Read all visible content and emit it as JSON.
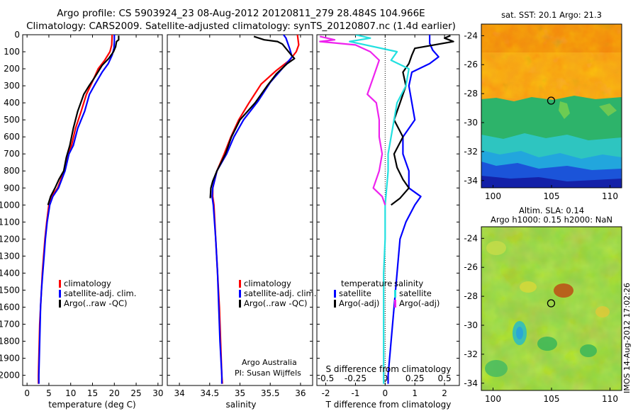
{
  "titles": {
    "line1": "Argo profile: CS 5903924_23 08-Aug-2012 20120811_279 28.484S 104.966E",
    "line2": "Climatology: CARS2009. Satellite-adjusted climatology: synTS_20120807.nc (1.4d earlier)"
  },
  "stamp": "IMOS 14-Aug-2012 17:02:26",
  "colors": {
    "climatology": "#ff0000",
    "satellite": "#0000ff",
    "argo": "#000000",
    "sat_salinity": "#22e0e0",
    "argo_salinity": "#ee22ee"
  },
  "chart_data": [
    {
      "type": "line",
      "name": "temperature profile",
      "xlabel": "temperature (deg C)",
      "xlim": [
        -1,
        31
      ],
      "ylim": [
        2060,
        0
      ],
      "y_reversed": true,
      "xticks": [
        0,
        5,
        10,
        15,
        20,
        25,
        30
      ],
      "yticks": [
        0,
        100,
        200,
        300,
        400,
        500,
        600,
        700,
        800,
        900,
        1000,
        1100,
        1200,
        1300,
        1400,
        1500,
        1600,
        1700,
        1800,
        1900,
        2000
      ],
      "legend": [
        "climatology",
        "satellite-adj. clim.",
        "Argo(..raw -QC)"
      ],
      "series": [
        {
          "name": "climatology",
          "color": "#ff0000",
          "points": [
            [
              19.5,
              0
            ],
            [
              19.4,
              60
            ],
            [
              19.0,
              100
            ],
            [
              17.8,
              150
            ],
            [
              16.3,
              200
            ],
            [
              14.9,
              280
            ],
            [
              13.6,
              350
            ],
            [
              12.4,
              450
            ],
            [
              11.1,
              550
            ],
            [
              10.2,
              650
            ],
            [
              9.4,
              700
            ],
            [
              8.5,
              800
            ],
            [
              7.0,
              900
            ],
            [
              5.6,
              950
            ],
            [
              5.0,
              1000
            ],
            [
              4.5,
              1100
            ],
            [
              4.1,
              1200
            ],
            [
              3.8,
              1300
            ],
            [
              3.5,
              1400
            ],
            [
              3.3,
              1500
            ],
            [
              3.1,
              1600
            ],
            [
              2.9,
              1700
            ],
            [
              2.8,
              1800
            ],
            [
              2.7,
              1900
            ],
            [
              2.6,
              2000
            ],
            [
              2.6,
              2050
            ]
          ]
        },
        {
          "name": "satellite-adj. clim.",
          "color": "#0000ff",
          "points": [
            [
              20.0,
              0
            ],
            [
              20.0,
              40
            ],
            [
              19.9,
              80
            ],
            [
              19.5,
              120
            ],
            [
              18.6,
              170
            ],
            [
              17.2,
              220
            ],
            [
              15.6,
              290
            ],
            [
              14.3,
              350
            ],
            [
              13.2,
              450
            ],
            [
              11.6,
              550
            ],
            [
              10.6,
              650
            ],
            [
              9.6,
              700
            ],
            [
              8.7,
              800
            ],
            [
              7.2,
              900
            ],
            [
              5.9,
              950
            ],
            [
              5.2,
              1000
            ],
            [
              4.6,
              1100
            ],
            [
              4.2,
              1200
            ],
            [
              3.9,
              1300
            ],
            [
              3.6,
              1400
            ],
            [
              3.3,
              1500
            ],
            [
              3.1,
              1600
            ],
            [
              3.0,
              1700
            ],
            [
              2.9,
              1800
            ],
            [
              2.8,
              1900
            ],
            [
              2.7,
              2000
            ],
            [
              2.7,
              2050
            ]
          ]
        },
        {
          "name": "Argo(..raw -QC)",
          "color": "#000000",
          "points": [
            [
              21.0,
              5
            ],
            [
              21.0,
              30
            ],
            [
              20.5,
              40
            ],
            [
              20.3,
              70
            ],
            [
              19.8,
              100
            ],
            [
              18.7,
              140
            ],
            [
              17.2,
              180
            ],
            [
              15.5,
              250
            ],
            [
              14.2,
              300
            ],
            [
              13.0,
              350
            ],
            [
              11.6,
              450
            ],
            [
              10.6,
              550
            ],
            [
              9.8,
              650
            ],
            [
              9.0,
              720
            ],
            [
              8.4,
              800
            ],
            [
              7.3,
              850
            ],
            [
              6.4,
              900
            ],
            [
              5.4,
              950
            ],
            [
              4.8,
              1000
            ]
          ]
        }
      ]
    },
    {
      "type": "line",
      "name": "salinity profile",
      "xlabel": "salinity",
      "xlim": [
        33.8,
        36.2
      ],
      "ylim": [
        2060,
        0
      ],
      "y_reversed": true,
      "xticks": [
        34,
        34.5,
        35,
        35.5,
        36
      ],
      "xticklabels": [
        "34",
        "34.5",
        "35",
        "35.5",
        "36"
      ],
      "legend": [
        "climatology",
        "satellite-adj. clim.",
        "Argo(..raw -QC)"
      ],
      "annotation": [
        "Argo Australia",
        "PI: Susan Wijffels"
      ],
      "series": [
        {
          "name": "climatology",
          "color": "#ff0000",
          "points": [
            [
              35.95,
              0
            ],
            [
              35.97,
              60
            ],
            [
              35.93,
              100
            ],
            [
              35.82,
              150
            ],
            [
              35.6,
              210
            ],
            [
              35.35,
              290
            ],
            [
              35.15,
              400
            ],
            [
              34.98,
              500
            ],
            [
              34.85,
              600
            ],
            [
              34.74,
              700
            ],
            [
              34.62,
              800
            ],
            [
              34.55,
              900
            ],
            [
              34.55,
              950
            ],
            [
              34.57,
              1000
            ],
            [
              34.6,
              1200
            ],
            [
              34.63,
              1400
            ],
            [
              34.66,
              1600
            ],
            [
              34.68,
              1800
            ],
            [
              34.7,
              2000
            ],
            [
              34.71,
              2050
            ]
          ]
        },
        {
          "name": "satellite-adj. clim.",
          "color": "#0000ff",
          "points": [
            [
              35.72,
              0
            ],
            [
              35.76,
              20
            ],
            [
              35.82,
              80
            ],
            [
              35.86,
              130
            ],
            [
              35.72,
              190
            ],
            [
              35.5,
              280
            ],
            [
              35.3,
              390
            ],
            [
              35.06,
              500
            ],
            [
              34.9,
              600
            ],
            [
              34.78,
              700
            ],
            [
              34.62,
              800
            ],
            [
              34.55,
              900
            ],
            [
              34.54,
              950
            ],
            [
              34.56,
              1000
            ],
            [
              34.6,
              1200
            ],
            [
              34.63,
              1400
            ],
            [
              34.65,
              1600
            ],
            [
              34.67,
              1800
            ],
            [
              34.7,
              2000
            ],
            [
              34.7,
              2050
            ]
          ]
        },
        {
          "name": "Argo(..raw -QC)",
          "color": "#000000",
          "points": [
            [
              35.23,
              10
            ],
            [
              35.4,
              30
            ],
            [
              35.62,
              40
            ],
            [
              35.7,
              55
            ],
            [
              35.85,
              120
            ],
            [
              35.9,
              140
            ],
            [
              35.78,
              170
            ],
            [
              35.6,
              230
            ],
            [
              35.45,
              300
            ],
            [
              35.25,
              400
            ],
            [
              35.0,
              500
            ],
            [
              34.86,
              600
            ],
            [
              34.76,
              700
            ],
            [
              34.62,
              800
            ],
            [
              34.55,
              860
            ],
            [
              34.52,
              900
            ],
            [
              34.51,
              960
            ]
          ]
        }
      ]
    },
    {
      "type": "line",
      "name": "difference from climatology",
      "xlabel": "T difference from climatology",
      "xlabel_top": "S difference from climatology",
      "xlim": [
        -2.3,
        2.5
      ],
      "ylim": [
        2060,
        0
      ],
      "y_reversed": true,
      "xticks": [
        -2,
        -1,
        0,
        1,
        2
      ],
      "top_ticks": [
        -0.5,
        -0.25,
        0,
        0.25,
        0.5
      ],
      "top_ticklabels": [
        "-0.5",
        "-0.25",
        "0",
        "0.25",
        "0.5"
      ],
      "legend_groups": [
        {
          "title": "temperature",
          "items": [
            "satellite",
            "Argo(-adj)"
          ]
        },
        {
          "title": "salinity",
          "items": [
            "satellite",
            "Argo(-adj)"
          ]
        }
      ],
      "series": [
        {
          "name": "temperature satellite",
          "color": "#0000ff",
          "points": [
            [
              1.5,
              0
            ],
            [
              1.5,
              50
            ],
            [
              1.6,
              90
            ],
            [
              1.8,
              130
            ],
            [
              1.5,
              170
            ],
            [
              0.9,
              220
            ],
            [
              0.8,
              300
            ],
            [
              0.9,
              400
            ],
            [
              1.0,
              500
            ],
            [
              0.6,
              600
            ],
            [
              0.6,
              700
            ],
            [
              0.8,
              800
            ],
            [
              0.8,
              900
            ],
            [
              1.2,
              950
            ],
            [
              1.0,
              1000
            ],
            [
              0.7,
              1100
            ],
            [
              0.5,
              1200
            ],
            [
              0.4,
              1400
            ],
            [
              0.3,
              1600
            ],
            [
              0.2,
              1800
            ],
            [
              0.1,
              2000
            ],
            [
              0.1,
              2050
            ]
          ]
        },
        {
          "name": "temperature Argo(-adj)",
          "color": "#000000",
          "points": [
            [
              2.2,
              5
            ],
            [
              2.0,
              20
            ],
            [
              2.3,
              40
            ],
            [
              1.0,
              80
            ],
            [
              0.9,
              120
            ],
            [
              0.8,
              170
            ],
            [
              0.6,
              220
            ],
            [
              0.7,
              300
            ],
            [
              0.5,
              400
            ],
            [
              0.3,
              500
            ],
            [
              0.6,
              600
            ],
            [
              0.3,
              700
            ],
            [
              0.4,
              780
            ],
            [
              0.6,
              850
            ],
            [
              0.8,
              900
            ],
            [
              0.5,
              960
            ],
            [
              0.2,
              1000
            ]
          ]
        },
        {
          "name": "salinity satellite",
          "color": "#22e0e0",
          "points": [
            [
              -1.0,
              0
            ],
            [
              -0.5,
              20
            ],
            [
              -1.2,
              40
            ],
            [
              0.4,
              100
            ],
            [
              0.2,
              150
            ],
            [
              0.8,
              200
            ],
            [
              0.7,
              300
            ],
            [
              0.4,
              400
            ],
            [
              0.3,
              500
            ],
            [
              0.2,
              600
            ],
            [
              0.1,
              700
            ],
            [
              0.1,
              800
            ],
            [
              0.05,
              900
            ],
            [
              0.0,
              1000
            ],
            [
              0.0,
              1200
            ],
            [
              -0.05,
              1400
            ],
            [
              -0.05,
              1600
            ],
            [
              -0.05,
              1800
            ],
            [
              -0.05,
              2000
            ],
            [
              -0.05,
              2050
            ]
          ]
        },
        {
          "name": "salinity Argo(-adj)",
          "color": "#ee22ee",
          "points": [
            [
              -2.2,
              10
            ],
            [
              -1.7,
              30
            ],
            [
              -2.2,
              40
            ],
            [
              -1.0,
              60
            ],
            [
              -0.5,
              100
            ],
            [
              -0.2,
              150
            ],
            [
              -0.4,
              250
            ],
            [
              -0.6,
              350
            ],
            [
              -0.3,
              400
            ],
            [
              -0.2,
              500
            ],
            [
              -0.2,
              600
            ],
            [
              -0.1,
              700
            ],
            [
              -0.2,
              800
            ],
            [
              -0.4,
              900
            ],
            [
              -0.1,
              950
            ],
            [
              0.0,
              1000
            ]
          ]
        }
      ]
    },
    {
      "type": "heatmap",
      "name": "SST map",
      "title": "sat. SST: 20.1 Argo: 21.3",
      "xlim": [
        99,
        111
      ],
      "ylim": [
        -34.5,
        -23.2
      ],
      "xticks": [
        100,
        105,
        110
      ],
      "yticks": [
        -24,
        -26,
        -28,
        -30,
        -32,
        -34
      ],
      "marker": [
        104.966,
        -28.484
      ]
    },
    {
      "type": "heatmap",
      "name": "SLA map",
      "title": [
        "Altim. SLA: 0.14",
        "Argo h1000: 0.15 h2000: NaN"
      ],
      "xlim": [
        99,
        111
      ],
      "ylim": [
        -34.5,
        -23.2
      ],
      "xticks": [
        100,
        105,
        110
      ],
      "yticks": [
        -24,
        -26,
        -28,
        -30,
        -32,
        -34
      ],
      "marker": [
        104.966,
        -28.484
      ]
    }
  ]
}
